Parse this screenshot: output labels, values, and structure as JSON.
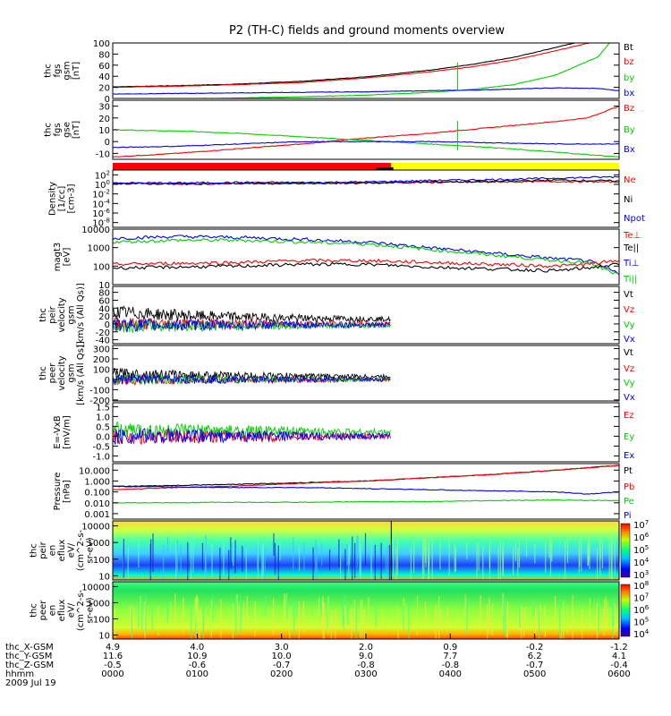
{
  "title": "P2 (TH-C) fields and ground moments overview",
  "colors": {
    "black": "#000000",
    "red": "#ff0000",
    "green": "#00d000",
    "blue": "#0000ff",
    "yellow": "#ffff00"
  },
  "chart_data": [
    {
      "id": "fgs_gsm",
      "type": "line",
      "ylabel_lines": [
        "thc",
        "fgs",
        "gsm",
        "[nT]"
      ],
      "yticks": [
        "0",
        "20",
        "40",
        "60",
        "80",
        "100"
      ],
      "ylim": [
        0,
        100
      ],
      "legend": [
        {
          "label": "Bt",
          "color": "black"
        },
        {
          "label": "bz",
          "color": "red"
        },
        {
          "label": "by",
          "color": "green"
        },
        {
          "label": "bx",
          "color": "blue"
        }
      ],
      "series": [
        {
          "name": "Bt",
          "color": "black",
          "x": [
            0,
            60,
            120,
            180,
            240,
            300,
            340,
            380,
            420,
            460,
            480
          ],
          "values": [
            21,
            23,
            26,
            31,
            39,
            51,
            61,
            74,
            92,
            110,
            130
          ]
        },
        {
          "name": "bz",
          "color": "red",
          "x": [
            0,
            60,
            120,
            180,
            240,
            300,
            340,
            380,
            420,
            460,
            480
          ],
          "values": [
            20,
            22,
            25,
            29,
            37,
            48,
            57,
            69,
            86,
            104,
            120
          ]
        },
        {
          "name": "by",
          "color": "green",
          "x": [
            0,
            60,
            120,
            180,
            240,
            300,
            340,
            380,
            420,
            460,
            480
          ],
          "values": [
            -2,
            -1,
            1,
            3,
            6,
            11,
            16,
            25,
            42,
            75,
            120
          ]
        },
        {
          "name": "bx",
          "color": "blue",
          "x": [
            0,
            60,
            120,
            180,
            240,
            300,
            340,
            380,
            420,
            460,
            480
          ],
          "values": [
            8,
            9,
            10,
            11,
            12,
            14,
            15,
            17,
            19,
            18,
            14
          ]
        }
      ]
    },
    {
      "id": "fgs_gse",
      "type": "line",
      "ylabel_lines": [
        "thc",
        "fgs",
        "gse",
        "[nT]"
      ],
      "yticks": [
        "-10",
        "0",
        "10",
        "20",
        "30"
      ],
      "ylim": [
        -15,
        35
      ],
      "legend": [
        {
          "label": "Bz",
          "color": "red"
        },
        {
          "label": "By",
          "color": "green"
        },
        {
          "label": "Bx",
          "color": "blue"
        }
      ],
      "series": [
        {
          "name": "Bz",
          "color": "red",
          "x": [
            0,
            60,
            120,
            180,
            240,
            300,
            360,
            420,
            450,
            480
          ],
          "values": [
            -13,
            -10,
            -6,
            -2,
            3,
            7,
            12,
            17,
            20,
            30
          ]
        },
        {
          "name": "By",
          "color": "green",
          "x": [
            0,
            60,
            120,
            180,
            240,
            300,
            360,
            420,
            480
          ],
          "values": [
            10,
            9,
            7,
            4,
            1,
            -2,
            -5,
            -9,
            -13
          ]
        },
        {
          "name": "Bx",
          "color": "blue",
          "x": [
            0,
            60,
            120,
            180,
            240,
            300,
            360,
            420,
            480
          ],
          "values": [
            -5,
            -4,
            -2,
            0,
            0,
            0,
            -1,
            -2,
            -2
          ]
        }
      ]
    },
    {
      "id": "mode_bar",
      "type": "bar",
      "segments": [
        {
          "from": 0,
          "to": 264,
          "color": "red"
        },
        {
          "from": 264,
          "to": 480,
          "color": "yellow"
        }
      ]
    },
    {
      "id": "density",
      "type": "line",
      "scale": "log",
      "ylabel_lines": [
        "Density",
        "[1/cc]",
        "[cm-3]"
      ],
      "yticks": [
        "10^-8",
        "10^-6",
        "10^-4",
        "10^-2",
        "10^0",
        "10^2"
      ],
      "ylim": [
        -9,
        3
      ],
      "legend": [
        {
          "label": "Ne",
          "color": "red"
        },
        {
          "label": "Ni",
          "color": "black"
        },
        {
          "label": "Npot",
          "color": "blue"
        }
      ],
      "series": [
        {
          "name": "Ne",
          "color": "red",
          "x": [
            0,
            60,
            120,
            180,
            240,
            300,
            360,
            420,
            480
          ],
          "values": [
            0.2,
            0.1,
            0.2,
            0.2,
            0.3,
            0.4,
            0.5,
            0.6,
            0.5
          ]
        },
        {
          "name": "Ni",
          "color": "black",
          "x": [
            0,
            60,
            120,
            180,
            240,
            300,
            360,
            420,
            480
          ],
          "values": [
            0.2,
            0.1,
            0.2,
            0.2,
            0.3,
            0.5,
            0.6,
            0.9,
            0.7
          ]
        },
        {
          "name": "Npot",
          "color": "blue",
          "x": [
            0,
            60,
            120,
            180,
            240,
            300,
            360,
            420,
            480
          ],
          "values": [
            0.3,
            0.3,
            0.4,
            0.4,
            0.5,
            0.8,
            1.0,
            1.3,
            1.6
          ]
        }
      ]
    },
    {
      "id": "temperature",
      "type": "line",
      "scale": "log",
      "ylabel_lines": [
        "magt3",
        "[eV]"
      ],
      "yticks": [
        "10",
        "100",
        "1000",
        "10000"
      ],
      "ylim": [
        1,
        4
      ],
      "legend": [
        {
          "label": "Te⊥",
          "color": "red"
        },
        {
          "label": "Te||",
          "color": "black"
        },
        {
          "label": "Ti⊥",
          "color": "blue"
        },
        {
          "label": "Ti||",
          "color": "green"
        }
      ],
      "series": [
        {
          "name": "Ti⊥",
          "color": "blue",
          "x": [
            0,
            60,
            120,
            180,
            240,
            300,
            360,
            420,
            450,
            480
          ],
          "values": [
            3.5,
            3.6,
            3.55,
            3.45,
            3.3,
            3.0,
            2.7,
            2.4,
            2.3,
            1.6
          ]
        },
        {
          "name": "Ti||",
          "color": "green",
          "x": [
            0,
            60,
            120,
            180,
            240,
            300,
            360,
            420,
            450,
            480
          ],
          "values": [
            3.3,
            3.4,
            3.4,
            3.3,
            3.2,
            2.9,
            2.6,
            2.3,
            2.2,
            1.5
          ]
        },
        {
          "name": "Te⊥",
          "color": "red",
          "x": [
            0,
            60,
            120,
            180,
            240,
            300,
            360,
            420,
            450,
            480
          ],
          "values": [
            2.1,
            2.15,
            2.2,
            2.3,
            2.3,
            2.2,
            2.1,
            2.0,
            2.1,
            2.3
          ]
        },
        {
          "name": "Te||",
          "color": "black",
          "x": [
            0,
            60,
            120,
            180,
            240,
            300,
            360,
            420,
            450,
            480
          ],
          "values": [
            1.9,
            1.95,
            2.0,
            2.1,
            2.1,
            1.95,
            1.85,
            1.75,
            1.9,
            2.1
          ]
        }
      ]
    },
    {
      "id": "peir_velocity",
      "type": "line",
      "ylabel_lines": [
        "thc",
        "peir",
        "velocity",
        "gsm",
        "[km/s (All Qs)]"
      ],
      "yticks": [
        "-40",
        "-20",
        "0",
        "20",
        "40",
        "60",
        "80"
      ],
      "ylim": [
        -50,
        95
      ],
      "legend": [
        {
          "label": "Vt",
          "color": "black"
        },
        {
          "label": "Vz",
          "color": "red"
        },
        {
          "label": "Vy",
          "color": "green"
        },
        {
          "label": "Vx",
          "color": "blue"
        }
      ],
      "series": [
        {
          "name": "Vt",
          "color": "black",
          "x": [
            0,
            40,
            80,
            120,
            160,
            200,
            240,
            264
          ],
          "values": [
            30,
            25,
            20,
            18,
            15,
            14,
            13,
            12
          ]
        },
        {
          "name": "Vz",
          "color": "red",
          "x": [
            0,
            264
          ],
          "values": [
            0,
            0
          ]
        },
        {
          "name": "Vy",
          "color": "green",
          "x": [
            0,
            264
          ],
          "values": [
            -5,
            -4
          ]
        },
        {
          "name": "Vx",
          "color": "blue",
          "x": [
            0,
            264
          ],
          "values": [
            -3,
            -2
          ]
        }
      ]
    },
    {
      "id": "peer_velocity",
      "type": "line",
      "ylabel_lines": [
        "thc",
        "peer",
        "velocity",
        "gsm",
        "[km/s (All Qs)]"
      ],
      "yticks": [
        "-200",
        "-100",
        "0",
        "100",
        "200",
        "300"
      ],
      "ylim": [
        -210,
        330
      ],
      "legend": [
        {
          "label": "Vt",
          "color": "black"
        },
        {
          "label": "Vz",
          "color": "red"
        },
        {
          "label": "Vy",
          "color": "green"
        },
        {
          "label": "Vx",
          "color": "blue"
        }
      ],
      "series": [
        {
          "name": "Vt",
          "color": "black",
          "x": [
            0,
            40,
            80,
            120,
            160,
            200,
            240,
            264
          ],
          "values": [
            60,
            50,
            40,
            35,
            35,
            30,
            28,
            28
          ]
        },
        {
          "name": "Vz",
          "color": "red",
          "x": [
            0,
            264
          ],
          "values": [
            -5,
            -5
          ]
        },
        {
          "name": "Vy",
          "color": "green",
          "x": [
            0,
            264
          ],
          "values": [
            0,
            0
          ]
        },
        {
          "name": "Vx",
          "color": "blue",
          "x": [
            0,
            264
          ],
          "values": [
            0,
            0
          ]
        }
      ]
    },
    {
      "id": "efield",
      "type": "line",
      "ylabel_lines": [
        "E=-VxB",
        "[mV/m]"
      ],
      "yticks": [
        "-1.0",
        "-0.5",
        "0.0",
        "0.5",
        "1.0",
        "1.5"
      ],
      "ylim": [
        -1.3,
        1.7
      ],
      "legend": [
        {
          "label": "Ez",
          "color": "red"
        },
        {
          "label": "Ey",
          "color": "green"
        },
        {
          "label": "Ex",
          "color": "blue"
        }
      ],
      "series": [
        {
          "name": "Ez",
          "color": "red",
          "x": [
            0,
            264
          ],
          "values": [
            0,
            0
          ]
        },
        {
          "name": "Ey",
          "color": "green",
          "x": [
            0,
            264
          ],
          "values": [
            0.3,
            0.2
          ]
        },
        {
          "name": "Ex",
          "color": "blue",
          "x": [
            0,
            264
          ],
          "values": [
            0,
            0
          ]
        }
      ]
    },
    {
      "id": "pressure",
      "type": "line",
      "scale": "log",
      "ylabel_lines": [
        "Pressure",
        "[nPa]"
      ],
      "yticks": [
        "0.001",
        "0.010",
        "0.100",
        "1.000",
        "10.000"
      ],
      "ylim": [
        -3.5,
        1.6
      ],
      "legend": [
        {
          "label": "Pt",
          "color": "black"
        },
        {
          "label": "Pb",
          "color": "red"
        },
        {
          "label": "Pe",
          "color": "green"
        },
        {
          "label": "Pi",
          "color": "blue"
        }
      ],
      "series": [
        {
          "name": "Pt",
          "color": "black",
          "x": [
            0,
            60,
            120,
            180,
            240,
            300,
            360,
            420,
            480
          ],
          "values": [
            -0.5,
            -0.4,
            -0.3,
            -0.15,
            0,
            0.3,
            0.6,
            1.0,
            1.45
          ]
        },
        {
          "name": "Pb",
          "color": "red",
          "x": [
            0,
            60,
            120,
            180,
            240,
            300,
            360,
            420,
            480
          ],
          "values": [
            -0.8,
            -0.6,
            -0.45,
            -0.2,
            0,
            0.3,
            0.6,
            1.0,
            1.42
          ]
        },
        {
          "name": "Pe",
          "color": "green",
          "x": [
            0,
            60,
            120,
            180,
            240,
            300,
            360,
            420,
            480
          ],
          "values": [
            -2.0,
            -2.0,
            -1.95,
            -1.95,
            -1.9,
            -1.9,
            -1.8,
            -1.75,
            -1.8
          ]
        },
        {
          "name": "Pi",
          "color": "blue",
          "x": [
            0,
            60,
            120,
            180,
            240,
            300,
            360,
            420,
            450,
            480
          ],
          "values": [
            -0.5,
            -0.55,
            -0.6,
            -0.6,
            -0.7,
            -0.8,
            -0.9,
            -1.0,
            -1.2,
            -1.0
          ]
        }
      ]
    },
    {
      "id": "peir_spectrogram",
      "type": "heatmap",
      "ylabel_lines": [
        "thc",
        "peir",
        "en",
        "eflux",
        "eV/",
        "(cm^2-s-",
        "sr-eV)"
      ],
      "yticks": [
        "10",
        "100",
        "1000",
        "10000"
      ],
      "colorbar_ticks": [
        "10^3",
        "10^4",
        "10^5",
        "10^6",
        "10^7"
      ]
    },
    {
      "id": "peer_spectrogram",
      "type": "heatmap",
      "ylabel_lines": [
        "thc",
        "peer",
        "en",
        "eflux",
        "eV/",
        "(cm^2-s-",
        "sr-eV)"
      ],
      "yticks": [
        "10",
        "100",
        "1000",
        "10000"
      ],
      "colorbar_ticks": [
        "10^4",
        "10^5",
        "10^6",
        "10^7",
        "10^8"
      ]
    }
  ],
  "xaxis": {
    "row_labels": [
      "thc_X-GSM",
      "thc_Y-GSM",
      "thc_Z-GSM",
      "hhmm",
      "2009 Jul 19"
    ],
    "columns": [
      {
        "values": [
          "4.9",
          "11.6",
          "-0.5",
          "0000"
        ]
      },
      {
        "values": [
          "4.0",
          "10.9",
          "-0.6",
          "0100"
        ]
      },
      {
        "values": [
          "3.0",
          "10.0",
          "-0.7",
          "0200"
        ]
      },
      {
        "values": [
          "2.0",
          "9.0",
          "-0.8",
          "0300"
        ]
      },
      {
        "values": [
          "0.9",
          "7.7",
          "-0.8",
          "0400"
        ]
      },
      {
        "values": [
          "-0.2",
          "6.2",
          "-0.7",
          "0500"
        ]
      },
      {
        "values": [
          "-1.2",
          "4.1",
          "-0.4",
          "0600"
        ]
      }
    ]
  }
}
